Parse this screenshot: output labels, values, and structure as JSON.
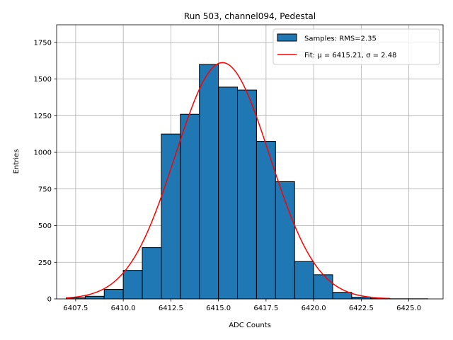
{
  "chart_data": {
    "type": "bar",
    "title": "Run 503, channel094, Pedestal",
    "xlabel": "ADC Counts",
    "ylabel": "Entries",
    "xlim": [
      6406.5,
      6426.8
    ],
    "ylim": [
      0,
      1870
    ],
    "grid": true,
    "legend_position": "top-right",
    "x_ticks": [
      6407.5,
      6410.0,
      6412.5,
      6415.0,
      6417.5,
      6420.0,
      6422.5,
      6425.0
    ],
    "x_tick_labels": [
      "6407.5",
      "6410.0",
      "6412.5",
      "6415.0",
      "6417.5",
      "6420.0",
      "6422.5",
      "6425.0"
    ],
    "y_ticks": [
      0,
      250,
      500,
      750,
      1000,
      1250,
      1500,
      1750
    ],
    "y_tick_labels": [
      "0",
      "250",
      "500",
      "750",
      "1000",
      "1250",
      "1500",
      "1750"
    ],
    "histogram": {
      "name": "Samples: RMS=2.35",
      "color": "#1f77b4",
      "edge_color": "#000000",
      "bins": [
        {
          "x0": 6407.0,
          "x1": 6408.0,
          "count": 8
        },
        {
          "x0": 6408.0,
          "x1": 6409.0,
          "count": 18
        },
        {
          "x0": 6409.0,
          "x1": 6410.0,
          "count": 65
        },
        {
          "x0": 6410.0,
          "x1": 6411.0,
          "count": 195
        },
        {
          "x0": 6411.0,
          "x1": 6412.0,
          "count": 350
        },
        {
          "x0": 6412.0,
          "x1": 6413.0,
          "count": 1125
        },
        {
          "x0": 6413.0,
          "x1": 6414.0,
          "count": 1260
        },
        {
          "x0": 6414.0,
          "x1": 6415.0,
          "count": 1600
        },
        {
          "x0": 6415.0,
          "x1": 6416.0,
          "count": 1445
        },
        {
          "x0": 6416.0,
          "x1": 6417.0,
          "count": 1425
        },
        {
          "x0": 6417.0,
          "x1": 6418.0,
          "count": 1075
        },
        {
          "x0": 6418.0,
          "x1": 6419.0,
          "count": 800
        },
        {
          "x0": 6419.0,
          "x1": 6420.0,
          "count": 255
        },
        {
          "x0": 6420.0,
          "x1": 6421.0,
          "count": 165
        },
        {
          "x0": 6421.0,
          "x1": 6422.0,
          "count": 45
        },
        {
          "x0": 6422.0,
          "x1": 6423.0,
          "count": 12
        },
        {
          "x0": 6423.0,
          "x1": 6424.0,
          "count": 3
        },
        {
          "x0": 6424.0,
          "x1": 6425.0,
          "count": 1
        },
        {
          "x0": 6425.0,
          "x1": 6426.0,
          "count": 1
        }
      ]
    },
    "fit": {
      "name": "Fit: μ = 6415.21, σ = 2.48",
      "color": "#ff0000",
      "mu": 6415.21,
      "sigma": 2.48,
      "amplitude": 1612,
      "x_range": [
        6407.0,
        6424.0
      ]
    }
  }
}
